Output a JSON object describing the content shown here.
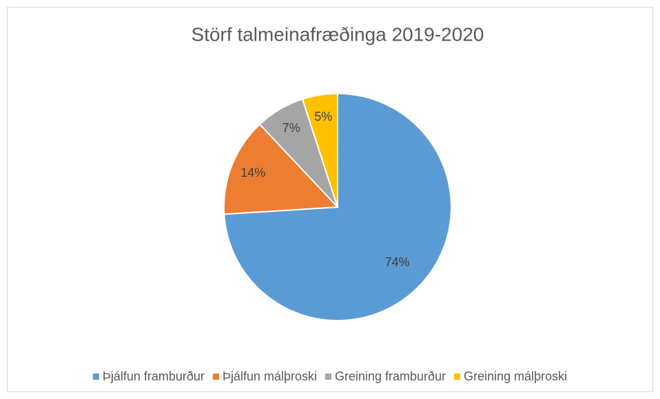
{
  "chart_data": {
    "type": "pie",
    "title": "Störf talmeinafræðinga 2019-2020",
    "categories": [
      "Þjálfun framburður",
      "Þjálfun málþroski",
      "Greining framburður",
      "Greining málþroski"
    ],
    "values": [
      74,
      14,
      7,
      5
    ],
    "value_labels": [
      "74%",
      "14%",
      "7%",
      "5%"
    ],
    "colors": [
      "#5b9bd5",
      "#ed7d31",
      "#a5a5a5",
      "#ffc000"
    ],
    "legend": "bottom"
  }
}
